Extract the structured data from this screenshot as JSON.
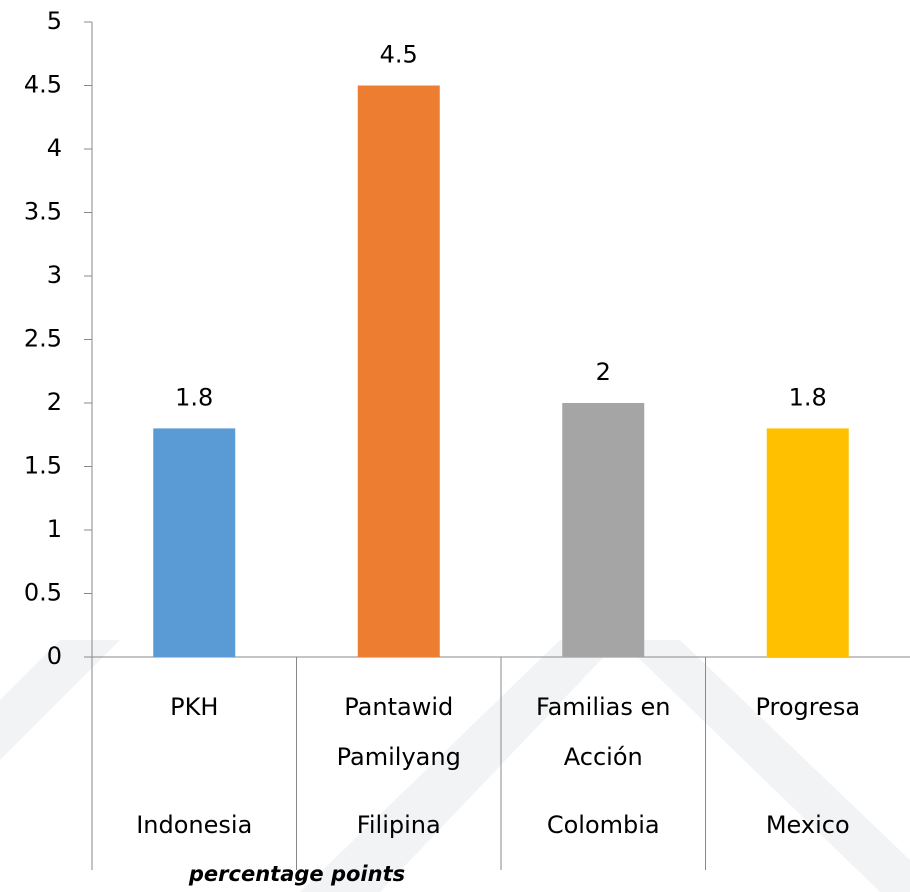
{
  "chart_data": {
    "type": "bar",
    "categories": [
      "PKH",
      "Pantawid Pamilyang",
      "Familias en Acción",
      "Progresa"
    ],
    "countries": [
      "Indonesia",
      "Filipina",
      "Colombia",
      "Mexico"
    ],
    "values": [
      1.8,
      4.5,
      2,
      1.8
    ],
    "colors": [
      "#5b9bd5",
      "#ed7d31",
      "#a5a5a5",
      "#ffc000"
    ],
    "ylim": [
      0,
      5
    ],
    "yticks": [
      0,
      0.5,
      1,
      1.5,
      2,
      2.5,
      3,
      3.5,
      4,
      4.5,
      5
    ],
    "note": "percentage points"
  }
}
